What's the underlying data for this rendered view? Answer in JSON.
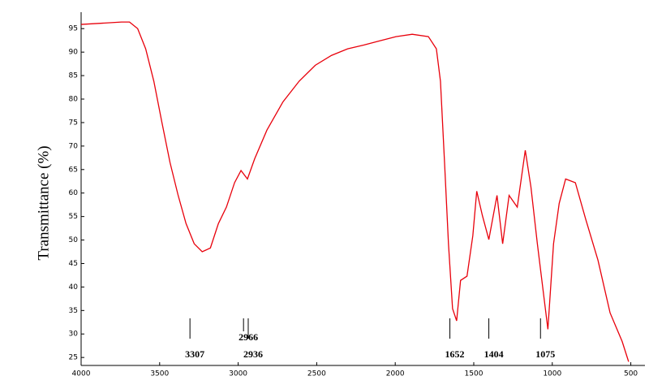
{
  "chart_data": {
    "type": "line",
    "y_label": "Transmittance  (%)",
    "xlim": [
      4000,
      410
    ],
    "ylim": [
      23.3,
      98.5
    ],
    "xticks": [
      4000,
      3500,
      3000,
      2500,
      2000,
      1500,
      1000,
      500
    ],
    "yticks": [
      25,
      30,
      35,
      40,
      45,
      50,
      55,
      60,
      65,
      70,
      75,
      80,
      85,
      90,
      95
    ],
    "series": [
      {
        "color": "#e8000b",
        "x": [
          4000,
          3743,
          3692,
          3640,
          3589,
          3537,
          3486,
          3434,
          3383,
          3332,
          3280,
          3229,
          3177,
          3126,
          3075,
          3023,
          2982,
          2941,
          2895,
          2817,
          2715,
          2612,
          2509,
          2406,
          2303,
          2201,
          2098,
          1995,
          1892,
          1789,
          1738,
          1712,
          1686,
          1661,
          1635,
          1609,
          1584,
          1543,
          1506,
          1481,
          1445,
          1404,
          1352,
          1316,
          1275,
          1223,
          1172,
          1136,
          1095,
          1028,
          992,
          956,
          915,
          853,
          787,
          709,
          632,
          555,
          514
        ],
        "values": [
          95.9,
          96.4,
          96.4,
          95,
          90.7,
          83.8,
          75.1,
          66.5,
          59.6,
          53.5,
          49.2,
          47.5,
          48.3,
          53.5,
          57,
          62.2,
          64.8,
          63,
          67.3,
          73.4,
          79.4,
          83.8,
          87.2,
          89.3,
          90.7,
          91.5,
          92.4,
          93.3,
          93.8,
          93.3,
          90.7,
          83.8,
          66.5,
          49.2,
          35.4,
          32.8,
          41.4,
          42.3,
          50.9,
          60.4,
          55.2,
          50.1,
          59.5,
          49.2,
          59.5,
          57,
          69.1,
          61.3,
          49.2,
          31,
          49.2,
          57.8,
          63,
          62.2,
          54.4,
          45.7,
          34.5,
          28.4,
          24.1
        ]
      }
    ],
    "peaks": [
      3307,
      2966,
      2936,
      1652,
      1404,
      1075
    ]
  }
}
